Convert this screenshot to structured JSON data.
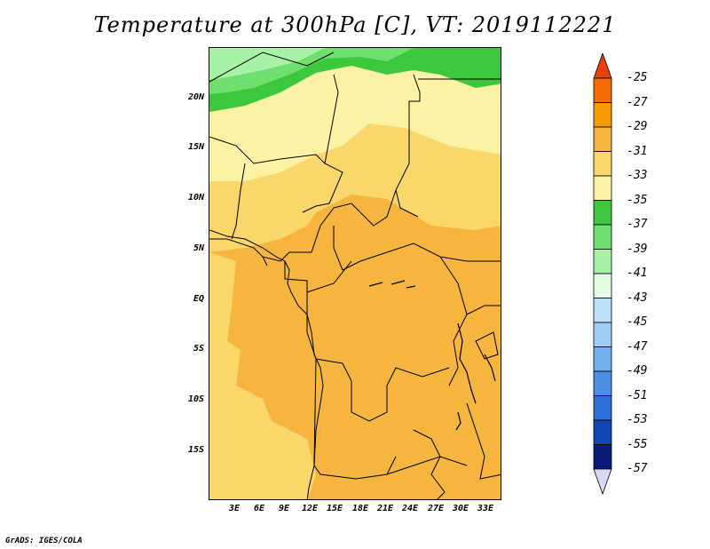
{
  "title": "Temperature at 300hPa [C], VT: 2019112221",
  "credit": "GrADS: IGES/COLA",
  "map": {
    "lat_labels": [
      "20N",
      "15N",
      "10N",
      "5N",
      "EQ",
      "5S",
      "10S",
      "15S"
    ],
    "lon_labels": [
      "3E",
      "6E",
      "9E",
      "12E",
      "15E",
      "18E",
      "21E",
      "24E",
      "27E",
      "30E",
      "33E"
    ]
  },
  "colorbar": {
    "labels": [
      "-25",
      "-27",
      "-29",
      "-31",
      "-33",
      "-35",
      "-37",
      "-39",
      "-41",
      "-43",
      "-45",
      "-47",
      "-49",
      "-51",
      "-53",
      "-55",
      "-57"
    ],
    "colors": [
      "#e8400c",
      "#f56d00",
      "#f69c00",
      "#f6b53f",
      "#fad76a",
      "#fdf1a3",
      "#3cc83c",
      "#6fe06f",
      "#a8f2a8",
      "#e1fbe6",
      "#bfe2fb",
      "#9fcdf8",
      "#73aef0",
      "#4b8fe6",
      "#2a6fd8",
      "#1046b8",
      "#0a1b7a",
      "#d8d8f6"
    ]
  },
  "map_fill_colors": {
    "warm": "#f6b53f",
    "mid": "#fad76a",
    "cool": "#fdf1a3",
    "green_dark": "#3cc83c",
    "green_mid": "#6fe06f",
    "green_light": "#a8f2a8"
  }
}
